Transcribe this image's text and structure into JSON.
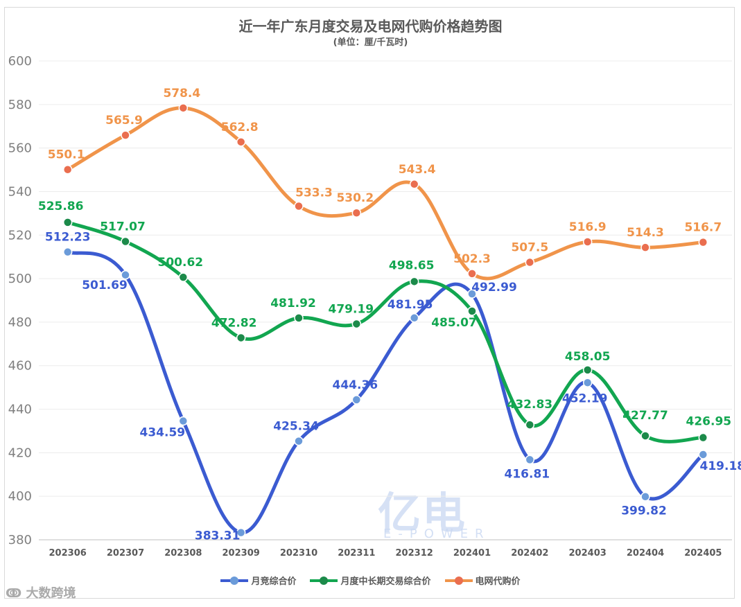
{
  "title": "近一年广东月度交易及电网代购价格趋势图",
  "subtitle": "(单位：厘/千瓦时)",
  "watermark": {
    "logo_text": "亿电",
    "logo_sub": "E-POWER",
    "source": "大数跨境"
  },
  "chart_data": {
    "type": "line",
    "title": "近一年广东月度交易及电网代购价格趋势图",
    "subtitle": "(单位：厘/千瓦时)",
    "xlabel": "",
    "ylabel": "",
    "ylim": [
      380,
      600
    ],
    "yticks": [
      380,
      400,
      420,
      440,
      460,
      480,
      500,
      520,
      540,
      560,
      580,
      600
    ],
    "categories": [
      "202306",
      "202307",
      "202308",
      "202309",
      "202310",
      "202311",
      "202312",
      "202401",
      "202402",
      "202403",
      "202404",
      "202405"
    ],
    "legend_position": "bottom",
    "series": [
      {
        "name": "月竞综合价",
        "color": "#3b5bd1",
        "marker_color": "#6b9bd9",
        "values": [
          512.23,
          501.69,
          434.59,
          383.31,
          425.34,
          444.36,
          481.95,
          492.99,
          416.81,
          452.19,
          399.82,
          419.18
        ],
        "labels": [
          "512.23",
          "501.69",
          "434.59",
          "383.31",
          "425.34",
          "444.36",
          "481.95",
          "492.99",
          "416.81",
          "452.19",
          "399.82",
          "419.18"
        ]
      },
      {
        "name": "月度中长期交易综合价",
        "color": "#12a650",
        "marker_color": "#1c8a4a",
        "values": [
          525.86,
          517.07,
          500.62,
          472.82,
          481.92,
          479.19,
          498.65,
          485.07,
          432.83,
          458.05,
          427.77,
          426.95
        ],
        "labels": [
          "525.86",
          "517.07",
          "500.62",
          "472.82",
          "481.92",
          "479.19",
          "498.65",
          "485.07",
          "432.83",
          "458.05",
          "427.77",
          "426.95"
        ]
      },
      {
        "name": "电网代购价",
        "color": "#f0944a",
        "marker_color": "#ea6e4f",
        "values": [
          550.1,
          565.9,
          578.4,
          562.8,
          533.3,
          530.2,
          543.4,
          502.3,
          507.5,
          516.9,
          514.3,
          516.7
        ],
        "labels": [
          "550.1",
          "565.9",
          "578.4",
          "562.8",
          "533.3",
          "530.2",
          "543.4",
          "502.3",
          "507.5",
          "516.9",
          "514.3",
          "516.7"
        ]
      }
    ]
  }
}
